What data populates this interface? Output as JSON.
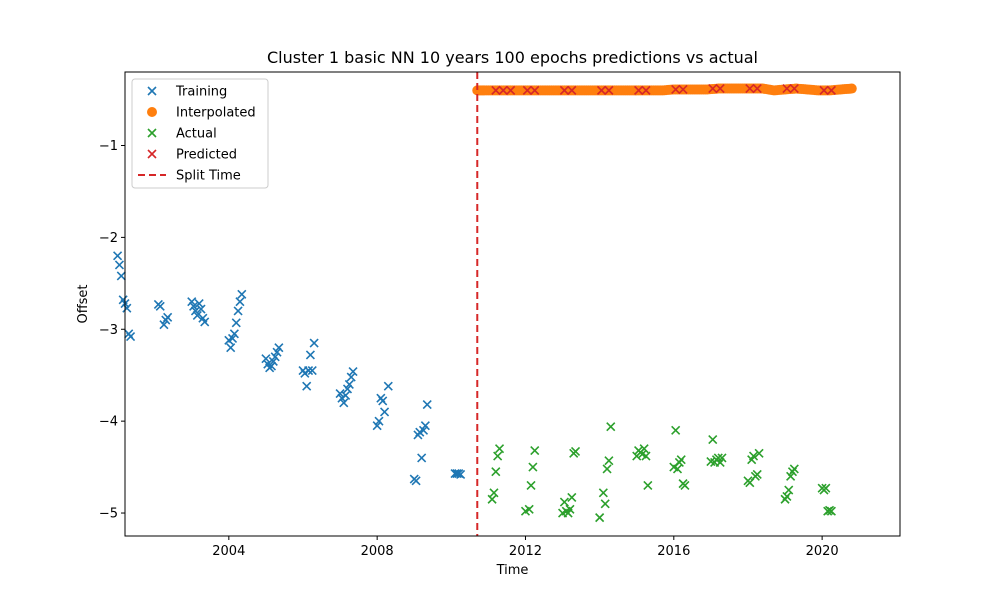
{
  "chart_data": {
    "type": "scatter",
    "title": "Cluster 1 basic NN 10 years 100 epochs predictions vs actual",
    "xlabel": "Time",
    "ylabel": "Offset",
    "xlim": [
      2001.2,
      2022.1
    ],
    "ylim": [
      -5.25,
      -0.2
    ],
    "x_ticks": [
      2004,
      2008,
      2012,
      2016,
      2020
    ],
    "y_ticks": [
      -1,
      -2,
      -3,
      -4,
      -5
    ],
    "x_tick_labels": [
      "2004",
      "2008",
      "2012",
      "2016",
      "2020"
    ],
    "y_tick_labels": [
      "−1",
      "−2",
      "−3",
      "−4",
      "−5"
    ],
    "grid": false,
    "legend_position": "top-left",
    "split_time": 2010.7,
    "series": [
      {
        "name": "Training",
        "marker": "x",
        "color": "#1f77b4",
        "points": [
          [
            2001.0,
            -2.2
          ],
          [
            2001.05,
            -2.3
          ],
          [
            2001.1,
            -2.42
          ],
          [
            2001.15,
            -2.68
          ],
          [
            2001.2,
            -2.72
          ],
          [
            2001.25,
            -2.77
          ],
          [
            2001.3,
            -3.05
          ],
          [
            2001.35,
            -3.08
          ],
          [
            2002.1,
            -2.73
          ],
          [
            2002.15,
            -2.75
          ],
          [
            2002.25,
            -2.95
          ],
          [
            2002.3,
            -2.9
          ],
          [
            2002.35,
            -2.87
          ],
          [
            2003.0,
            -2.7
          ],
          [
            2003.05,
            -2.75
          ],
          [
            2003.1,
            -2.8
          ],
          [
            2003.15,
            -2.85
          ],
          [
            2003.2,
            -2.72
          ],
          [
            2003.25,
            -2.78
          ],
          [
            2003.3,
            -2.88
          ],
          [
            2003.35,
            -2.92
          ],
          [
            2004.0,
            -3.12
          ],
          [
            2004.05,
            -3.2
          ],
          [
            2004.1,
            -3.1
          ],
          [
            2004.15,
            -3.05
          ],
          [
            2004.2,
            -2.93
          ],
          [
            2004.25,
            -2.8
          ],
          [
            2004.3,
            -2.7
          ],
          [
            2004.35,
            -2.62
          ],
          [
            2005.0,
            -3.32
          ],
          [
            2005.05,
            -3.38
          ],
          [
            2005.1,
            -3.42
          ],
          [
            2005.15,
            -3.4
          ],
          [
            2005.2,
            -3.35
          ],
          [
            2005.25,
            -3.3
          ],
          [
            2005.3,
            -3.25
          ],
          [
            2005.35,
            -3.2
          ],
          [
            2006.0,
            -3.45
          ],
          [
            2006.05,
            -3.48
          ],
          [
            2006.1,
            -3.62
          ],
          [
            2006.15,
            -3.45
          ],
          [
            2006.2,
            -3.28
          ],
          [
            2006.25,
            -3.45
          ],
          [
            2006.3,
            -3.15
          ],
          [
            2007.0,
            -3.7
          ],
          [
            2007.05,
            -3.75
          ],
          [
            2007.1,
            -3.8
          ],
          [
            2007.15,
            -3.72
          ],
          [
            2007.2,
            -3.65
          ],
          [
            2007.25,
            -3.6
          ],
          [
            2007.3,
            -3.52
          ],
          [
            2007.35,
            -3.46
          ],
          [
            2008.0,
            -4.05
          ],
          [
            2008.05,
            -4.0
          ],
          [
            2008.1,
            -3.75
          ],
          [
            2008.15,
            -3.78
          ],
          [
            2008.2,
            -3.9
          ],
          [
            2008.3,
            -3.62
          ],
          [
            2009.0,
            -4.63
          ],
          [
            2009.05,
            -4.65
          ],
          [
            2009.1,
            -4.15
          ],
          [
            2009.15,
            -4.12
          ],
          [
            2009.2,
            -4.4
          ],
          [
            2009.25,
            -4.1
          ],
          [
            2009.3,
            -4.05
          ],
          [
            2009.35,
            -3.82
          ],
          [
            2010.1,
            -4.57
          ],
          [
            2010.15,
            -4.57
          ],
          [
            2010.2,
            -4.57
          ],
          [
            2010.25,
            -4.58
          ]
        ]
      },
      {
        "name": "Interpolated",
        "marker": "o",
        "color": "#ff7f0e",
        "points": [
          [
            2010.7,
            -0.4
          ],
          [
            2010.9,
            -0.4
          ],
          [
            2011.2,
            -0.4
          ],
          [
            2011.5,
            -0.4
          ],
          [
            2011.8,
            -0.4
          ],
          [
            2012.1,
            -0.4
          ],
          [
            2012.4,
            -0.4
          ],
          [
            2012.7,
            -0.4
          ],
          [
            2013.0,
            -0.4
          ],
          [
            2013.3,
            -0.4
          ],
          [
            2013.6,
            -0.4
          ],
          [
            2013.9,
            -0.4
          ],
          [
            2014.2,
            -0.4
          ],
          [
            2014.5,
            -0.4
          ],
          [
            2014.8,
            -0.4
          ],
          [
            2015.1,
            -0.4
          ],
          [
            2015.4,
            -0.4
          ],
          [
            2015.7,
            -0.4
          ],
          [
            2016.0,
            -0.39
          ],
          [
            2016.3,
            -0.39
          ],
          [
            2016.6,
            -0.39
          ],
          [
            2016.9,
            -0.39
          ],
          [
            2017.2,
            -0.38
          ],
          [
            2017.5,
            -0.38
          ],
          [
            2017.8,
            -0.38
          ],
          [
            2018.1,
            -0.38
          ],
          [
            2018.4,
            -0.38
          ],
          [
            2018.7,
            -0.4
          ],
          [
            2019.0,
            -0.39
          ],
          [
            2019.3,
            -0.38
          ],
          [
            2019.6,
            -0.39
          ],
          [
            2019.9,
            -0.4
          ],
          [
            2020.2,
            -0.4
          ],
          [
            2020.5,
            -0.39
          ],
          [
            2020.8,
            -0.38
          ]
        ]
      },
      {
        "name": "Actual",
        "marker": "x",
        "color": "#2ca02c",
        "points": [
          [
            2011.1,
            -4.85
          ],
          [
            2011.15,
            -4.78
          ],
          [
            2011.2,
            -4.55
          ],
          [
            2011.25,
            -4.38
          ],
          [
            2011.3,
            -4.3
          ],
          [
            2012.0,
            -4.98
          ],
          [
            2012.1,
            -4.96
          ],
          [
            2012.15,
            -4.7
          ],
          [
            2012.2,
            -4.5
          ],
          [
            2012.25,
            -4.32
          ],
          [
            2013.0,
            -5.0
          ],
          [
            2013.05,
            -4.88
          ],
          [
            2013.1,
            -4.98
          ],
          [
            2013.15,
            -5.0
          ],
          [
            2013.2,
            -4.96
          ],
          [
            2013.25,
            -4.83
          ],
          [
            2013.3,
            -4.35
          ],
          [
            2013.35,
            -4.33
          ],
          [
            2014.0,
            -5.05
          ],
          [
            2014.1,
            -4.78
          ],
          [
            2014.15,
            -4.9
          ],
          [
            2014.2,
            -4.52
          ],
          [
            2014.25,
            -4.43
          ],
          [
            2014.3,
            -4.06
          ],
          [
            2015.0,
            -4.38
          ],
          [
            2015.05,
            -4.32
          ],
          [
            2015.1,
            -4.34
          ],
          [
            2015.15,
            -4.36
          ],
          [
            2015.2,
            -4.3
          ],
          [
            2015.25,
            -4.38
          ],
          [
            2015.3,
            -4.7
          ],
          [
            2016.0,
            -4.5
          ],
          [
            2016.05,
            -4.1
          ],
          [
            2016.1,
            -4.52
          ],
          [
            2016.15,
            -4.45
          ],
          [
            2016.2,
            -4.42
          ],
          [
            2016.25,
            -4.68
          ],
          [
            2016.3,
            -4.7
          ],
          [
            2017.0,
            -4.44
          ],
          [
            2017.05,
            -4.2
          ],
          [
            2017.1,
            -4.45
          ],
          [
            2017.15,
            -4.42
          ],
          [
            2017.2,
            -4.4
          ],
          [
            2017.25,
            -4.45
          ],
          [
            2017.3,
            -4.4
          ],
          [
            2018.0,
            -4.65
          ],
          [
            2018.05,
            -4.67
          ],
          [
            2018.1,
            -4.42
          ],
          [
            2018.15,
            -4.38
          ],
          [
            2018.2,
            -4.6
          ],
          [
            2018.25,
            -4.58
          ],
          [
            2018.3,
            -4.35
          ],
          [
            2019.0,
            -4.85
          ],
          [
            2019.05,
            -4.82
          ],
          [
            2019.1,
            -4.75
          ],
          [
            2019.15,
            -4.6
          ],
          [
            2019.2,
            -4.55
          ],
          [
            2019.25,
            -4.52
          ],
          [
            2020.0,
            -4.73
          ],
          [
            2020.05,
            -4.75
          ],
          [
            2020.1,
            -4.73
          ],
          [
            2020.15,
            -4.98
          ],
          [
            2020.2,
            -4.97
          ],
          [
            2020.25,
            -4.98
          ]
        ]
      },
      {
        "name": "Predicted",
        "marker": "x",
        "color": "#d62728",
        "points": [
          [
            2011.2,
            -0.4
          ],
          [
            2011.4,
            -0.4
          ],
          [
            2011.6,
            -0.4
          ],
          [
            2012.05,
            -0.4
          ],
          [
            2012.25,
            -0.4
          ],
          [
            2013.05,
            -0.4
          ],
          [
            2013.25,
            -0.4
          ],
          [
            2014.05,
            -0.4
          ],
          [
            2014.25,
            -0.4
          ],
          [
            2015.05,
            -0.4
          ],
          [
            2015.25,
            -0.4
          ],
          [
            2016.05,
            -0.39
          ],
          [
            2016.25,
            -0.39
          ],
          [
            2017.05,
            -0.38
          ],
          [
            2017.25,
            -0.38
          ],
          [
            2018.05,
            -0.38
          ],
          [
            2018.25,
            -0.38
          ],
          [
            2019.05,
            -0.38
          ],
          [
            2019.25,
            -0.38
          ],
          [
            2020.05,
            -0.4
          ],
          [
            2020.25,
            -0.4
          ]
        ]
      }
    ]
  },
  "legend": {
    "items": [
      {
        "label": "Training",
        "color": "#1f77b4",
        "marker": "x"
      },
      {
        "label": "Interpolated",
        "color": "#ff7f0e",
        "marker": "o"
      },
      {
        "label": "Actual",
        "color": "#2ca02c",
        "marker": "x"
      },
      {
        "label": "Predicted",
        "color": "#d62728",
        "marker": "x"
      },
      {
        "label": "Split Time",
        "color": "#d62728",
        "marker": "dashed-line"
      }
    ]
  }
}
